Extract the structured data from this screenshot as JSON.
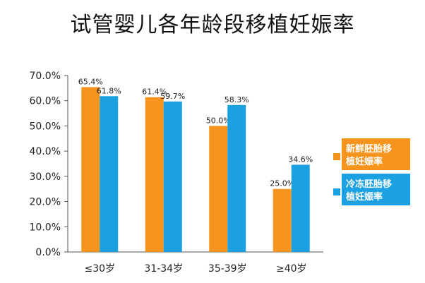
{
  "chart_data": {
    "type": "bar",
    "title": "试管婴儿各年龄段移植妊娠率",
    "categories": [
      "≤30岁",
      "31-34岁",
      "35-39岁",
      "≥40岁"
    ],
    "series": [
      {
        "name": "新鲜胚胎移植妊娠率",
        "values": [
          65.4,
          61.4,
          50.0,
          25.0
        ],
        "labels": [
          "65.4%",
          "61.4%",
          "50.0%",
          "25.0%"
        ],
        "color": "#F7941D"
      },
      {
        "name": "冷冻胚胎移植妊娠率",
        "values": [
          61.8,
          59.7,
          58.3,
          34.6
        ],
        "labels": [
          "61.8%",
          "59.7%",
          "58.3%",
          "34.6%"
        ],
        "color": "#1BA1E2"
      }
    ],
    "y_ticks": [
      "0.0%",
      "10.0%",
      "20.0%",
      "30.0%",
      "40.0%",
      "50.0%",
      "60.0%",
      "70.0%"
    ],
    "ylim": [
      0,
      70
    ],
    "grid": false,
    "legend_position": "right"
  }
}
